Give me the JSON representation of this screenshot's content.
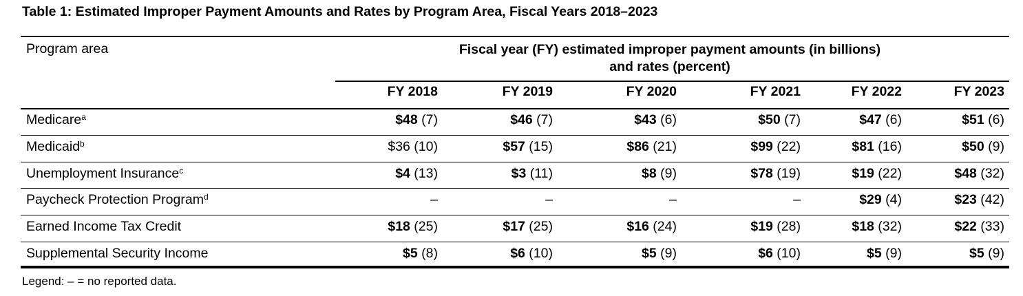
{
  "title": "Table 1: Estimated Improper Payment Amounts and Rates by Program Area, Fiscal Years 2018–2023",
  "header": {
    "program_area": "Program area",
    "group_line1": "Fiscal year (FY) estimated improper payment amounts (in billions)",
    "group_line2": "and rates (percent)",
    "columns": [
      "FY 2018",
      "FY 2019",
      "FY 2020",
      "FY 2021",
      "FY 2022",
      "FY 2023"
    ]
  },
  "rows": [
    {
      "label": "Medicare",
      "note": "a",
      "cells": [
        {
          "amount": "$48",
          "rate": "(7)",
          "bold": true
        },
        {
          "amount": "$46",
          "rate": "(7)",
          "bold": true
        },
        {
          "amount": "$43",
          "rate": "(6)",
          "bold": true
        },
        {
          "amount": "$50",
          "rate": "(7)",
          "bold": true
        },
        {
          "amount": "$47",
          "rate": "(6)",
          "bold": true
        },
        {
          "amount": "$51",
          "rate": "(6)",
          "bold": true
        }
      ]
    },
    {
      "label": "Medicaid",
      "note": "b",
      "cells": [
        {
          "amount": "$36",
          "rate": "(10)",
          "bold": false
        },
        {
          "amount": "$57",
          "rate": "(15)",
          "bold": true
        },
        {
          "amount": "$86",
          "rate": "(21)",
          "bold": true
        },
        {
          "amount": "$99",
          "rate": "(22)",
          "bold": true
        },
        {
          "amount": "$81",
          "rate": "(16)",
          "bold": true
        },
        {
          "amount": "$50",
          "rate": "(9)",
          "bold": true
        }
      ]
    },
    {
      "label": "Unemployment Insurance",
      "note": "c",
      "cells": [
        {
          "amount": "$4",
          "rate": "(13)",
          "bold": true
        },
        {
          "amount": "$3",
          "rate": "(11)",
          "bold": true
        },
        {
          "amount": "$8",
          "rate": "(9)",
          "bold": true
        },
        {
          "amount": "$78",
          "rate": "(19)",
          "bold": true
        },
        {
          "amount": "$19",
          "rate": "(22)",
          "bold": true
        },
        {
          "amount": "$48",
          "rate": "(32)",
          "bold": true
        }
      ]
    },
    {
      "label": "Paycheck Protection Program",
      "note": "d",
      "cells": [
        {
          "amount": "–",
          "rate": "",
          "bold": false
        },
        {
          "amount": "–",
          "rate": "",
          "bold": false
        },
        {
          "amount": "–",
          "rate": "",
          "bold": false
        },
        {
          "amount": "–",
          "rate": "",
          "bold": false
        },
        {
          "amount": "$29",
          "rate": "(4)",
          "bold": true
        },
        {
          "amount": "$23",
          "rate": "(42)",
          "bold": true
        }
      ]
    },
    {
      "label": "Earned Income Tax Credit",
      "note": "",
      "cells": [
        {
          "amount": "$18",
          "rate": "(25)",
          "bold": true
        },
        {
          "amount": "$17",
          "rate": "(25)",
          "bold": true
        },
        {
          "amount": "$16",
          "rate": "(24)",
          "bold": true
        },
        {
          "amount": "$19",
          "rate": "(28)",
          "bold": true
        },
        {
          "amount": "$18",
          "rate": "(32)",
          "bold": true
        },
        {
          "amount": "$22",
          "rate": "(33)",
          "bold": true
        }
      ]
    },
    {
      "label": "Supplemental Security Income",
      "note": "",
      "cells": [
        {
          "amount": "$5",
          "rate": "(8)",
          "bold": true
        },
        {
          "amount": "$6",
          "rate": "(10)",
          "bold": true
        },
        {
          "amount": "$5",
          "rate": "(9)",
          "bold": true
        },
        {
          "amount": "$6",
          "rate": "(10)",
          "bold": true
        },
        {
          "amount": "$5",
          "rate": "(9)",
          "bold": true
        },
        {
          "amount": "$5",
          "rate": "(9)",
          "bold": true
        }
      ]
    }
  ],
  "legend": "Legend: – = no reported data."
}
